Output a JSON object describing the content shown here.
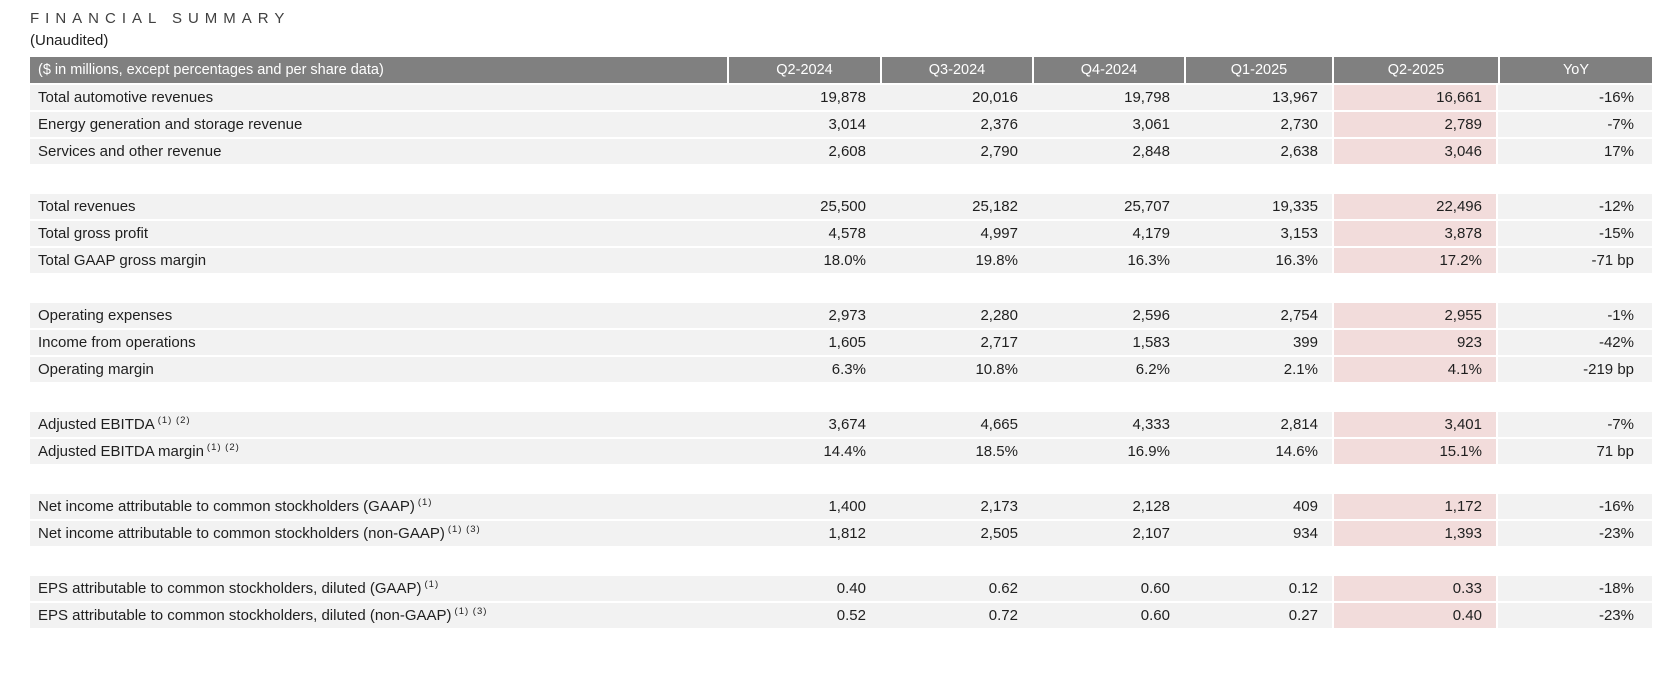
{
  "title": "FINANCIAL SUMMARY",
  "subtitle": "(Unaudited)",
  "colors": {
    "header_bg": "#808080",
    "header_text": "#ffffff",
    "row_bg": "#f2f2f2",
    "highlight_bg": "#f2dcdb",
    "text": "#1f1f1f"
  },
  "table": {
    "label_header": "($ in millions, except percentages and per share data)",
    "columns": [
      "Q2-2024",
      "Q3-2024",
      "Q4-2024",
      "Q1-2025",
      "Q2-2025",
      "YoY"
    ],
    "column_keys": [
      "q2-2024",
      "q3-2024",
      "q4-2024",
      "q1-2025",
      "q2-2025",
      "yoy"
    ],
    "highlight_column_index": 4,
    "groups": [
      {
        "rows": [
          {
            "label": "Total automotive revenues",
            "sup": "",
            "values": [
              "19,878",
              "20,016",
              "19,798",
              "13,967",
              "16,661",
              "-16%"
            ]
          },
          {
            "label": "Energy generation and storage revenue",
            "sup": "",
            "values": [
              "3,014",
              "2,376",
              "3,061",
              "2,730",
              "2,789",
              "-7%"
            ]
          },
          {
            "label": "Services and other revenue",
            "sup": "",
            "values": [
              "2,608",
              "2,790",
              "2,848",
              "2,638",
              "3,046",
              "17%"
            ]
          }
        ]
      },
      {
        "rows": [
          {
            "label": "Total revenues",
            "sup": "",
            "values": [
              "25,500",
              "25,182",
              "25,707",
              "19,335",
              "22,496",
              "-12%"
            ]
          },
          {
            "label": "Total gross profit",
            "sup": "",
            "values": [
              "4,578",
              "4,997",
              "4,179",
              "3,153",
              "3,878",
              "-15%"
            ]
          },
          {
            "label": "Total GAAP gross margin",
            "sup": "",
            "values": [
              "18.0%",
              "19.8%",
              "16.3%",
              "16.3%",
              "17.2%",
              "-71 bp"
            ]
          }
        ]
      },
      {
        "rows": [
          {
            "label": "Operating expenses",
            "sup": "",
            "values": [
              "2,973",
              "2,280",
              "2,596",
              "2,754",
              "2,955",
              "-1%"
            ]
          },
          {
            "label": "Income from operations",
            "sup": "",
            "values": [
              "1,605",
              "2,717",
              "1,583",
              "399",
              "923",
              "-42%"
            ]
          },
          {
            "label": "Operating margin",
            "sup": "",
            "values": [
              "6.3%",
              "10.8%",
              "6.2%",
              "2.1%",
              "4.1%",
              "-219 bp"
            ]
          }
        ]
      },
      {
        "rows": [
          {
            "label": "Adjusted EBITDA",
            "sup": "(1) (2)",
            "values": [
              "3,674",
              "4,665",
              "4,333",
              "2,814",
              "3,401",
              "-7%"
            ]
          },
          {
            "label": "Adjusted EBITDA margin",
            "sup": "(1) (2)",
            "values": [
              "14.4%",
              "18.5%",
              "16.9%",
              "14.6%",
              "15.1%",
              "71 bp"
            ]
          }
        ]
      },
      {
        "rows": [
          {
            "label": "Net income attributable to common stockholders (GAAP)",
            "sup": "(1)",
            "values": [
              "1,400",
              "2,173",
              "2,128",
              "409",
              "1,172",
              "-16%"
            ]
          },
          {
            "label": "Net income attributable to common stockholders (non-GAAP)",
            "sup": "(1) (3)",
            "values": [
              "1,812",
              "2,505",
              "2,107",
              "934",
              "1,393",
              "-23%"
            ]
          }
        ]
      },
      {
        "rows": [
          {
            "label": "EPS attributable to common stockholders, diluted (GAAP)",
            "sup": "(1)",
            "values": [
              "0.40",
              "0.62",
              "0.60",
              "0.12",
              "0.33",
              "-18%"
            ]
          },
          {
            "label": "EPS attributable to common stockholders, diluted (non-GAAP)",
            "sup": "(1) (3)",
            "values": [
              "0.52",
              "0.72",
              "0.60",
              "0.27",
              "0.40",
              "-23%"
            ]
          }
        ]
      }
    ]
  }
}
